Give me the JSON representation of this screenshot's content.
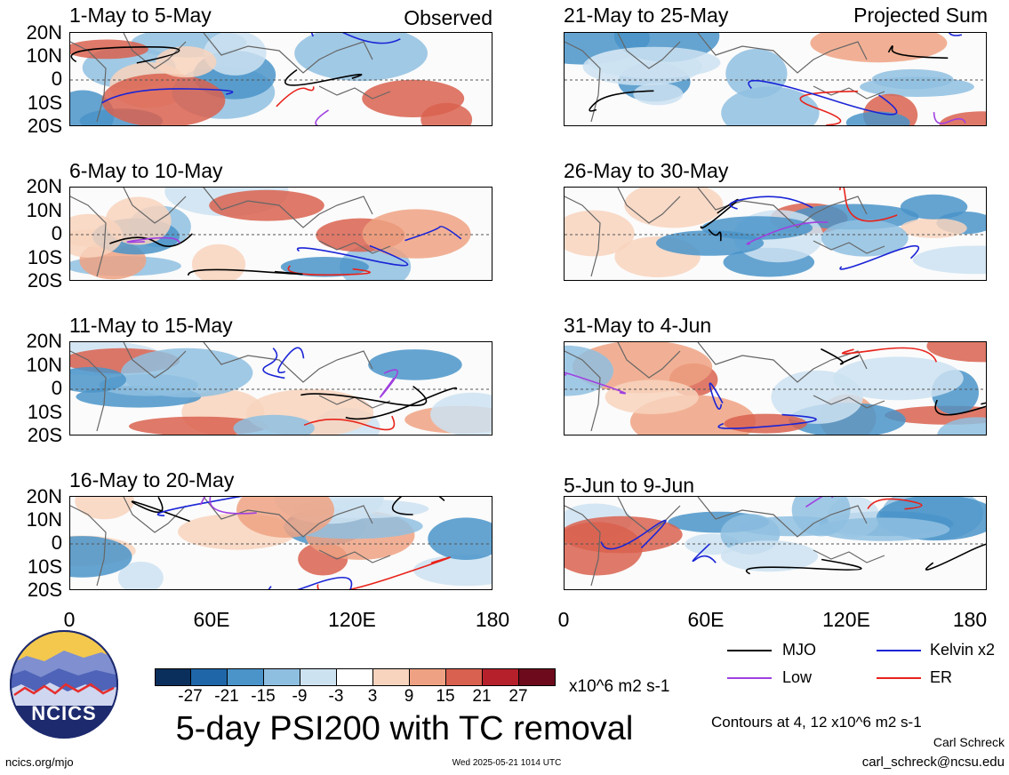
{
  "header": {
    "observed_label": "Observed",
    "projected_label": "Projected Sum"
  },
  "panels": {
    "left": [
      {
        "title": "1-May to 5-May"
      },
      {
        "title": "6-May to 10-May"
      },
      {
        "title": "11-May to 15-May"
      },
      {
        "title": "16-May to 20-May"
      }
    ],
    "right": [
      {
        "title": "21-May to 25-May"
      },
      {
        "title": "26-May to 30-May"
      },
      {
        "title": "31-May to 4-Jun"
      },
      {
        "title": "5-Jun to 9-Jun"
      }
    ]
  },
  "axes": {
    "lat_labels": [
      "20N",
      "10N",
      "0",
      "10S",
      "20S"
    ],
    "lon_labels": [
      "0",
      "60E",
      "120E",
      "180"
    ]
  },
  "colorbar": {
    "labels": [
      "-27",
      "-21",
      "-15",
      "-9",
      "-3",
      "3",
      "9",
      "15",
      "21",
      "27"
    ],
    "colors": [
      "#0b2f5c",
      "#1f66a8",
      "#4a94c9",
      "#8fbfe0",
      "#cde2f1",
      "#ffffff",
      "#f8d3bd",
      "#eea283",
      "#d9614f",
      "#b5202b",
      "#6d0a1c"
    ],
    "units": "x10^6 m2 s-1"
  },
  "legend": {
    "items": [
      {
        "label": "MJO",
        "color": "#000000"
      },
      {
        "label": "Kelvin x2",
        "color": "#1a24d6"
      },
      {
        "label": "Low",
        "color": "#a040e0"
      },
      {
        "label": "ER",
        "color": "#e8231b"
      }
    ],
    "contours_note": "Contours at 4, 12 x10^6 m2 s-1"
  },
  "logo": {
    "text": "NCICS"
  },
  "title": "5-day PSI200 with TC removal",
  "footer": {
    "url": "ncics.org/mjo",
    "timestamp": "Wed 2025-05-21 1014 UTC",
    "author": "Carl Schreck",
    "email": "carl_schreck@ncsu.edu"
  }
}
